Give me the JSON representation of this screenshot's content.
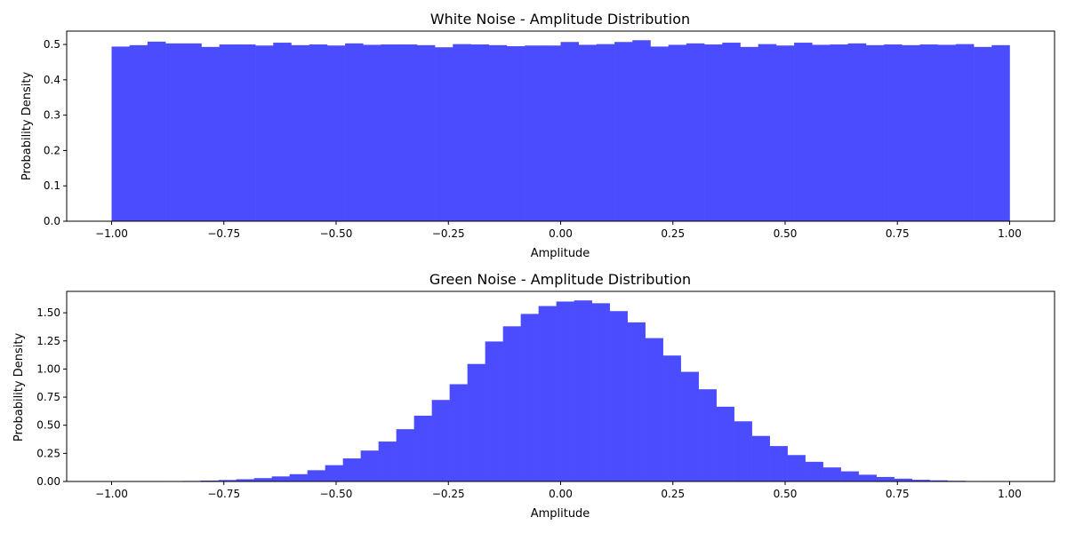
{
  "chart_data": [
    {
      "type": "bar",
      "title": "White Noise - Amplitude Distribution",
      "xlabel": "Amplitude",
      "ylabel": "Probability Density",
      "xlim": [
        -1.1,
        1.1
      ],
      "ylim": [
        0,
        0.5378
      ],
      "xticks": [
        -1.0,
        -0.75,
        -0.5,
        -0.25,
        0.0,
        0.25,
        0.5,
        0.75,
        1.0
      ],
      "xtick_labels": [
        "−1.00",
        "−0.75",
        "−0.50",
        "−0.25",
        "0.00",
        "0.25",
        "0.50",
        "0.75",
        "1.00"
      ],
      "yticks": [
        0.0,
        0.1,
        0.2,
        0.3,
        0.4,
        0.5
      ],
      "ytick_labels": [
        "0.0",
        "0.1",
        "0.2",
        "0.3",
        "0.4",
        "0.5"
      ],
      "color": "#4c4cff",
      "bin_start": -1.0,
      "bin_width": 0.04,
      "values": [
        0.494,
        0.498,
        0.508,
        0.503,
        0.503,
        0.493,
        0.5,
        0.5,
        0.497,
        0.505,
        0.498,
        0.5,
        0.497,
        0.503,
        0.499,
        0.5,
        0.5,
        0.498,
        0.492,
        0.501,
        0.5,
        0.498,
        0.495,
        0.497,
        0.497,
        0.507,
        0.499,
        0.501,
        0.507,
        0.512,
        0.494,
        0.499,
        0.503,
        0.5,
        0.505,
        0.493,
        0.501,
        0.497,
        0.505,
        0.499,
        0.5,
        0.503,
        0.498,
        0.5,
        0.498,
        0.5,
        0.499,
        0.501,
        0.493,
        0.498
      ]
    },
    {
      "type": "bar",
      "title": "Green Noise - Amplitude Distribution",
      "xlabel": "Amplitude",
      "ylabel": "Probability Density",
      "xlim": [
        -1.1,
        1.1
      ],
      "ylim": [
        0,
        1.6905
      ],
      "xticks": [
        -1.0,
        -0.75,
        -0.5,
        -0.25,
        0.0,
        0.25,
        0.5,
        0.75,
        1.0
      ],
      "xtick_labels": [
        "−1.00",
        "−0.75",
        "−0.50",
        "−0.25",
        "0.00",
        "0.25",
        "0.50",
        "0.75",
        "1.00"
      ],
      "yticks": [
        0.0,
        0.25,
        0.5,
        0.75,
        1.0,
        1.25,
        1.5
      ],
      "ytick_labels": [
        "0.00",
        "0.25",
        "0.50",
        "0.75",
        "1.00",
        "1.25",
        "1.50"
      ],
      "color": "#4c4cff",
      "bin_start": -0.96,
      "bin_width": 0.0396,
      "values": [
        0.002,
        0.003,
        0.004,
        0.005,
        0.008,
        0.013,
        0.02,
        0.03,
        0.045,
        0.065,
        0.1,
        0.145,
        0.205,
        0.275,
        0.355,
        0.465,
        0.585,
        0.725,
        0.865,
        1.045,
        1.245,
        1.38,
        1.49,
        1.56,
        1.6,
        1.61,
        1.585,
        1.515,
        1.415,
        1.275,
        1.12,
        0.975,
        0.82,
        0.665,
        0.535,
        0.405,
        0.315,
        0.235,
        0.175,
        0.125,
        0.09,
        0.06,
        0.04,
        0.025,
        0.015,
        0.01,
        0.006,
        0.004,
        0.002,
        0.001
      ]
    }
  ]
}
